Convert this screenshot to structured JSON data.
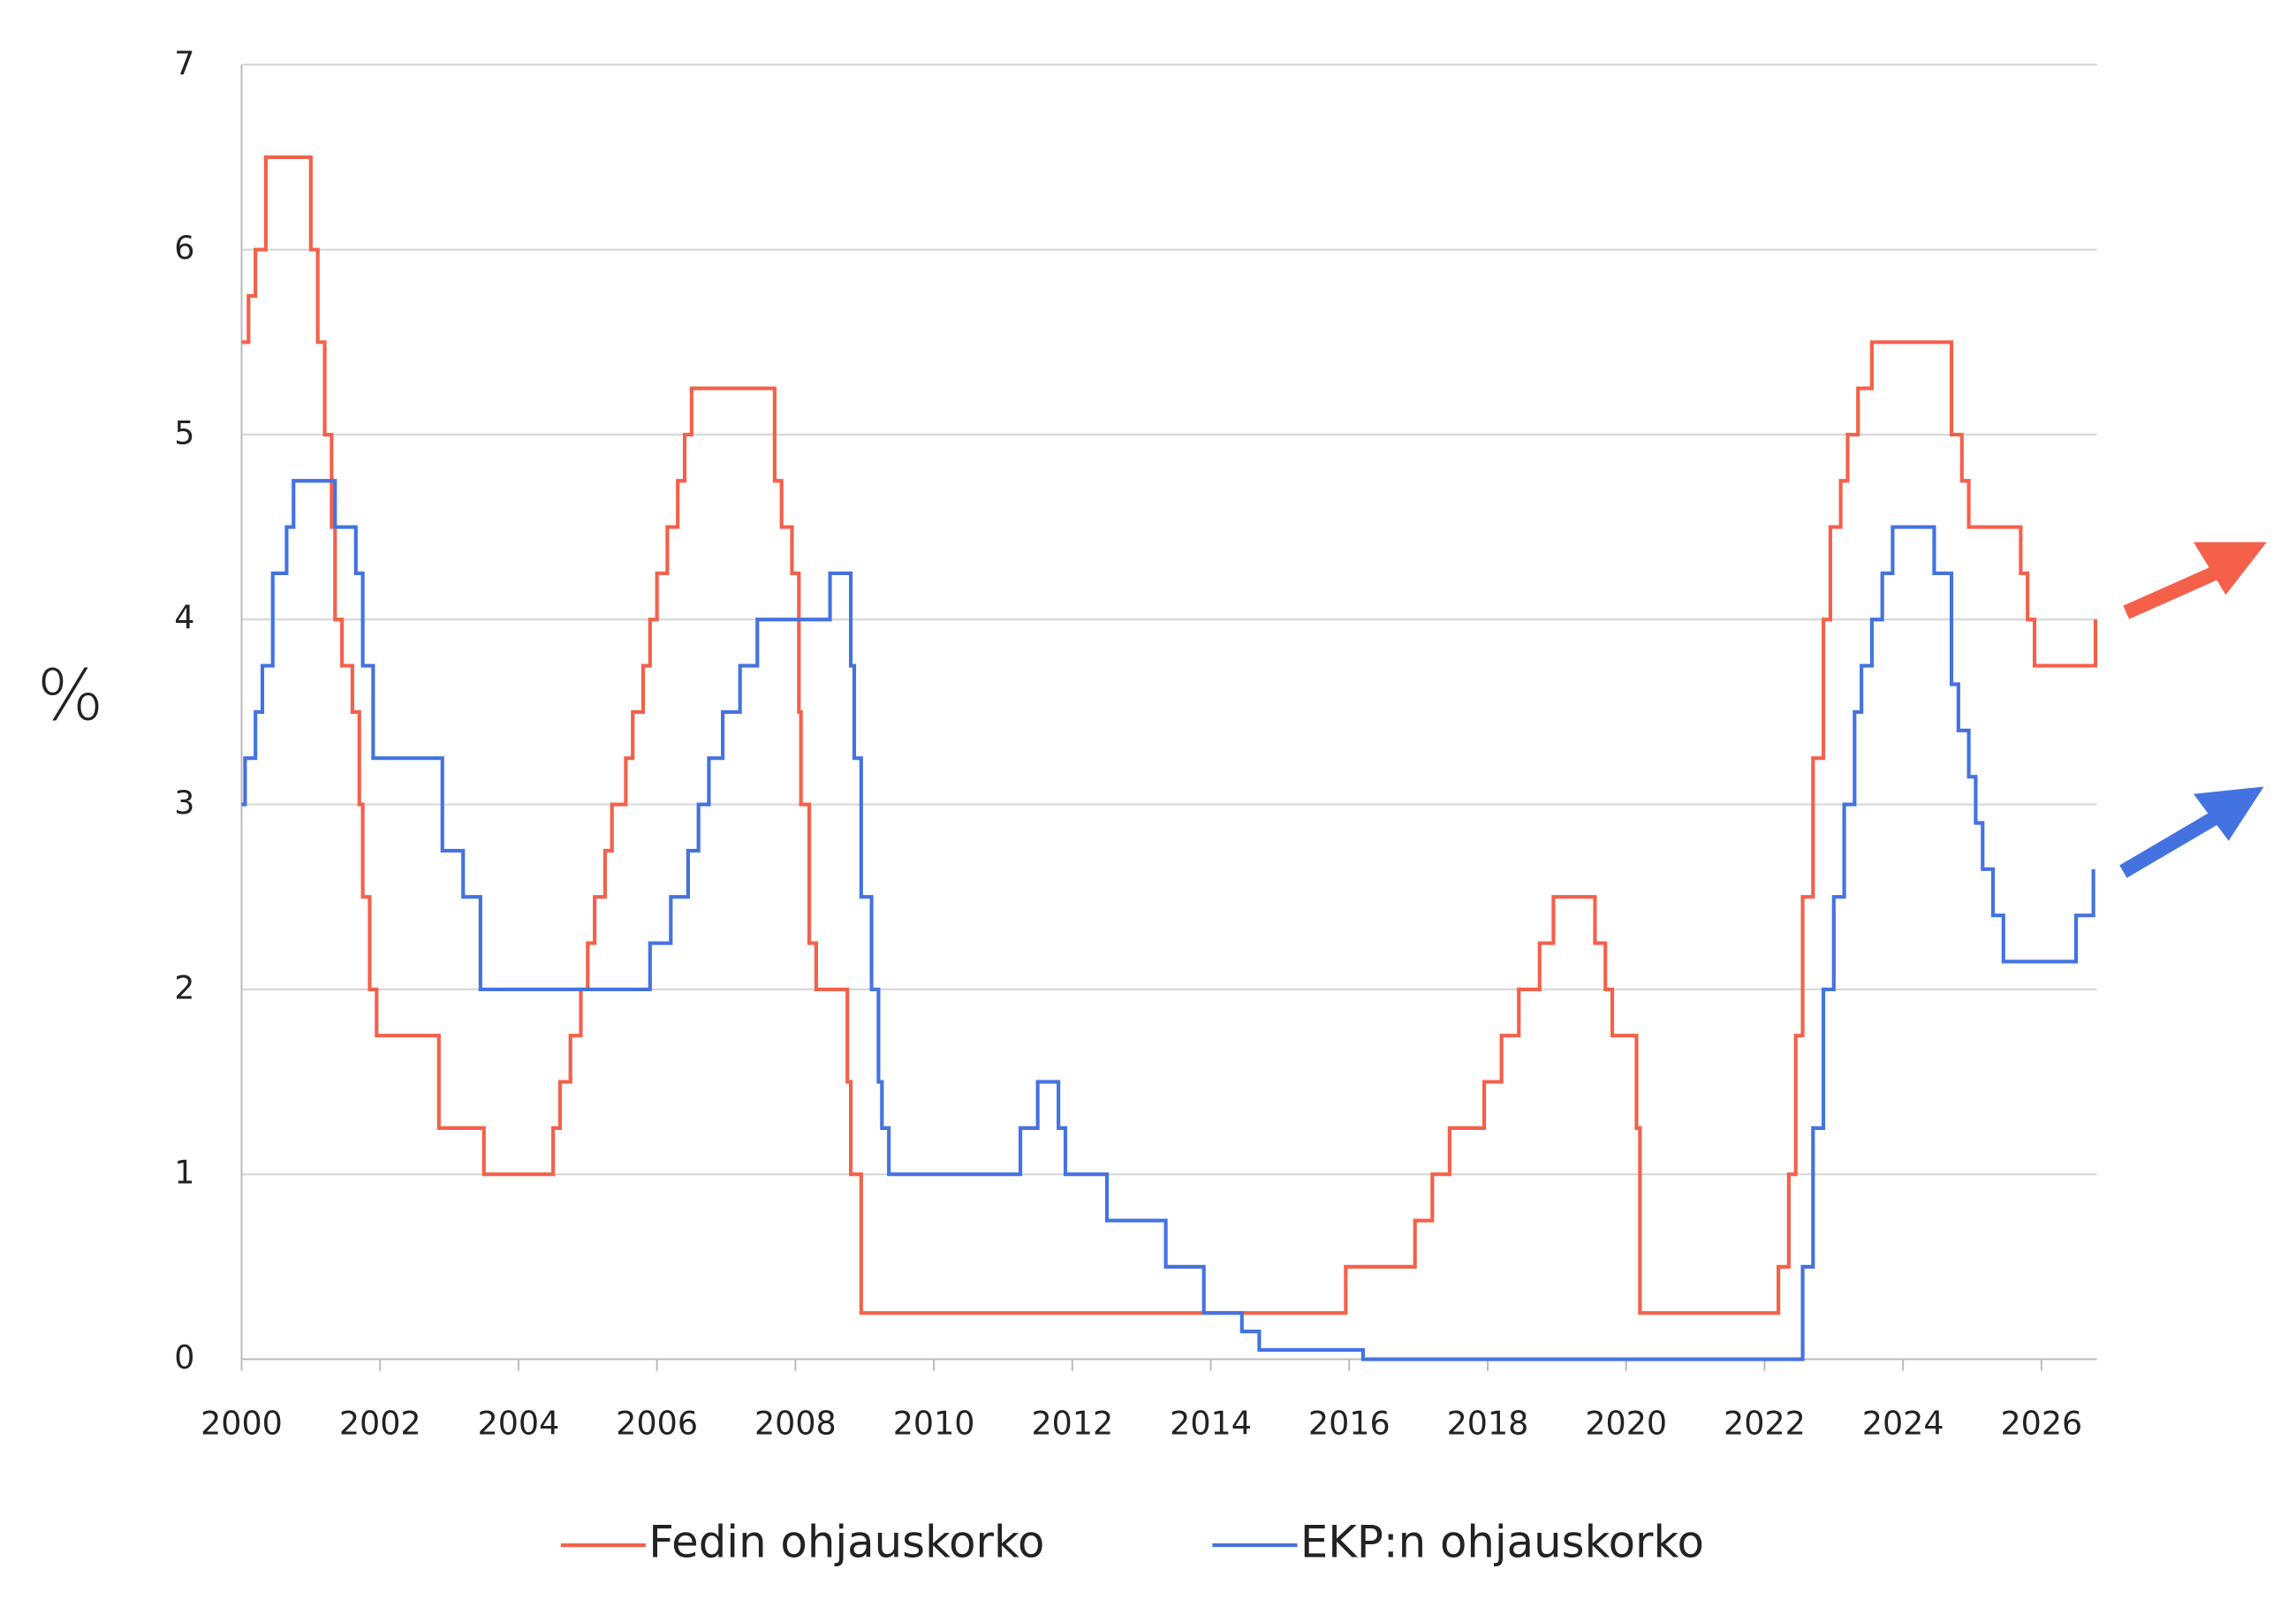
{
  "chart_data": {
    "type": "step-line",
    "y_label": "%",
    "xlim": [
      2000,
      2026.8
    ],
    "xticks": [
      2000,
      2002,
      2004,
      2006,
      2008,
      2010,
      2012,
      2014,
      2016,
      2018,
      2020,
      2022,
      2024,
      2026
    ],
    "ylim": [
      0,
      7
    ],
    "yticks": [
      0,
      1,
      2,
      3,
      4,
      5,
      6,
      7
    ],
    "grid": true,
    "legend": "bottom",
    "series": [
      {
        "name": "Fedin ohjauskorko",
        "color": "#f4604a",
        "x": [
          2000.0,
          2000.1,
          2000.2,
          2000.35,
          2001.0,
          2001.1,
          2001.2,
          2001.3,
          2001.35,
          2001.45,
          2001.6,
          2001.7,
          2001.75,
          2001.85,
          2001.95,
          2002.85,
          2003.5,
          2004.5,
          2004.6,
          2004.75,
          2004.9,
          2005.0,
          2005.1,
          2005.25,
          2005.35,
          2005.55,
          2005.65,
          2005.8,
          2005.9,
          2006.0,
          2006.15,
          2006.3,
          2006.4,
          2006.5,
          2007.7,
          2007.8,
          2007.95,
          2008.05,
          2008.08,
          2008.2,
          2008.3,
          2008.75,
          2008.8,
          2008.95,
          2015.95,
          2016.95,
          2017.2,
          2017.45,
          2017.95,
          2018.2,
          2018.45,
          2018.75,
          2018.95,
          2019.55,
          2019.7,
          2019.8,
          2020.15,
          2020.2,
          2022.2,
          2022.35,
          2022.45,
          2022.55,
          2022.7,
          2022.85,
          2022.95,
          2023.1,
          2023.2,
          2023.35,
          2023.55,
          2024.7,
          2024.85,
          2024.95,
          2025.7,
          2025.8,
          2025.9,
          2026.78
        ],
        "values": [
          5.5,
          5.75,
          6.0,
          6.5,
          6.0,
          5.5,
          5.0,
          4.5,
          4.0,
          3.75,
          3.5,
          3.0,
          2.5,
          2.0,
          1.75,
          1.25,
          1.0,
          1.25,
          1.5,
          1.75,
          2.0,
          2.25,
          2.5,
          2.75,
          3.0,
          3.25,
          3.5,
          3.75,
          4.0,
          4.25,
          4.5,
          4.75,
          5.0,
          5.25,
          4.75,
          4.5,
          4.25,
          3.5,
          3.0,
          2.25,
          2.0,
          1.5,
          1.0,
          0.25,
          0.5,
          0.75,
          1.0,
          1.25,
          1.5,
          1.75,
          2.0,
          2.25,
          2.5,
          2.25,
          2.0,
          1.75,
          1.25,
          0.25,
          0.5,
          1.0,
          1.75,
          2.5,
          3.25,
          4.0,
          4.5,
          4.75,
          5.0,
          5.25,
          5.5,
          5.0,
          4.75,
          4.5,
          4.25,
          4.0,
          3.75,
          4.0
        ]
      },
      {
        "name": "EKP:n ohjauskorko",
        "color": "#4472e0",
        "x": [
          2000.0,
          2000.05,
          2000.2,
          2000.3,
          2000.45,
          2000.65,
          2000.75,
          2001.35,
          2001.65,
          2001.75,
          2001.9,
          2002.9,
          2003.2,
          2003.45,
          2005.9,
          2006.2,
          2006.45,
          2006.6,
          2006.75,
          2006.95,
          2007.2,
          2007.45,
          2008.5,
          2008.8,
          2008.85,
          2008.95,
          2009.1,
          2009.2,
          2009.25,
          2009.35,
          2011.25,
          2011.5,
          2011.8,
          2011.9,
          2012.5,
          2013.35,
          2013.9,
          2014.45,
          2014.7,
          2016.2,
          2022.55,
          2022.7,
          2022.85,
          2023.0,
          2023.15,
          2023.3,
          2023.4,
          2023.55,
          2023.7,
          2023.85,
          2024.45,
          2024.7,
          2024.8,
          2024.95,
          2025.05,
          2025.15,
          2025.3,
          2025.45,
          2026.5,
          2026.75
        ],
        "values": [
          3.0,
          3.25,
          3.5,
          3.75,
          4.25,
          4.5,
          4.75,
          4.5,
          4.25,
          3.75,
          3.25,
          2.75,
          2.5,
          2.0,
          2.25,
          2.5,
          2.75,
          3.0,
          3.25,
          3.5,
          3.75,
          4.0,
          4.25,
          3.75,
          3.25,
          2.5,
          2.0,
          1.5,
          1.25,
          1.0,
          1.25,
          1.5,
          1.25,
          1.0,
          0.75,
          0.5,
          0.25,
          0.15,
          0.05,
          0.0,
          0.5,
          1.25,
          2.0,
          2.5,
          3.0,
          3.5,
          3.75,
          4.0,
          4.25,
          4.5,
          4.25,
          3.65,
          3.4,
          3.15,
          2.9,
          2.65,
          2.4,
          2.15,
          2.4,
          2.65
        ]
      }
    ]
  }
}
